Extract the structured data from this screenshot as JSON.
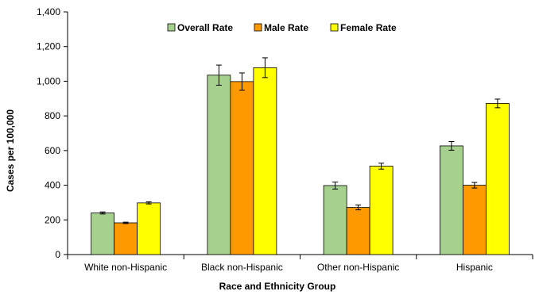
{
  "chart_data": {
    "type": "bar",
    "title": "",
    "xlabel": "Race and Ethnicity Group",
    "ylabel": "Cases per 100,000",
    "ylim": [
      0,
      1400
    ],
    "yticks": [
      0,
      200,
      400,
      600,
      800,
      1000,
      1200,
      1400
    ],
    "ytick_labels": [
      "0",
      "200",
      "400",
      "600",
      "800",
      "1,000",
      "1,200",
      "1,400"
    ],
    "categories": [
      "White non-Hispanic",
      "Black non-Hispanic",
      "Other non-Hispanic",
      "Hispanic"
    ],
    "series": [
      {
        "name": "Overall Rate",
        "color": "#a6d08e",
        "values": [
          240,
          1035,
          398,
          627
        ],
        "error": [
          6,
          58,
          20,
          25
        ]
      },
      {
        "name": "Male Rate",
        "color": "#ff9900",
        "values": [
          183,
          998,
          272,
          400
        ],
        "error": [
          4,
          50,
          14,
          16
        ]
      },
      {
        "name": "Female Rate",
        "color": "#ffff00",
        "values": [
          298,
          1078,
          510,
          872
        ],
        "error": [
          6,
          57,
          17,
          25
        ]
      }
    ],
    "grid": false,
    "legend_position": "top-center"
  }
}
